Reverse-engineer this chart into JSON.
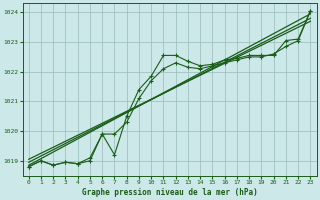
{
  "title": "Graphe pression niveau de la mer (hPa)",
  "bg_color": "#cce8e8",
  "grid_color": "#99bbbb",
  "line_color": "#1a5c1a",
  "text_color": "#1a5c1a",
  "xlim": [
    -0.5,
    23.5
  ],
  "ylim": [
    1018.5,
    1024.3
  ],
  "xticks": [
    0,
    1,
    2,
    3,
    4,
    5,
    6,
    7,
    8,
    9,
    10,
    11,
    12,
    13,
    14,
    15,
    16,
    17,
    18,
    19,
    20,
    21,
    22,
    23
  ],
  "yticks": [
    1019,
    1020,
    1021,
    1022,
    1023,
    1024
  ],
  "series1_x": [
    0,
    1,
    2,
    3,
    4,
    5,
    6,
    7,
    8,
    9,
    10,
    11,
    12,
    13,
    14,
    15,
    16,
    17,
    18,
    19,
    20,
    21,
    22,
    23
  ],
  "series1_y": [
    1018.8,
    1019.0,
    1018.85,
    1018.95,
    1018.9,
    1019.1,
    1019.9,
    1019.2,
    1020.5,
    1021.4,
    1021.85,
    1022.55,
    1022.55,
    1022.35,
    1022.2,
    1022.25,
    1022.4,
    1022.45,
    1022.55,
    1022.55,
    1022.55,
    1023.05,
    1023.1,
    1024.05
  ],
  "series2_x": [
    0,
    1,
    2,
    3,
    4,
    5,
    6,
    7,
    8,
    9,
    10,
    11,
    12,
    13,
    14,
    15,
    16,
    17,
    18,
    19,
    20,
    21,
    22,
    23
  ],
  "series2_y": [
    1018.8,
    1019.0,
    1018.85,
    1018.95,
    1018.9,
    1019.0,
    1019.9,
    1019.9,
    1020.3,
    1021.1,
    1021.7,
    1022.1,
    1022.3,
    1022.15,
    1022.1,
    1022.2,
    1022.3,
    1022.4,
    1022.5,
    1022.5,
    1022.6,
    1022.85,
    1023.05,
    1024.05
  ],
  "trend1_x": [
    0,
    23
  ],
  "trend1_y": [
    1019.05,
    1023.7
  ],
  "trend2_x": [
    0,
    23
  ],
  "trend2_y": [
    1018.95,
    1023.8
  ],
  "trend3_x": [
    0,
    23
  ],
  "trend3_y": [
    1018.85,
    1023.95
  ]
}
